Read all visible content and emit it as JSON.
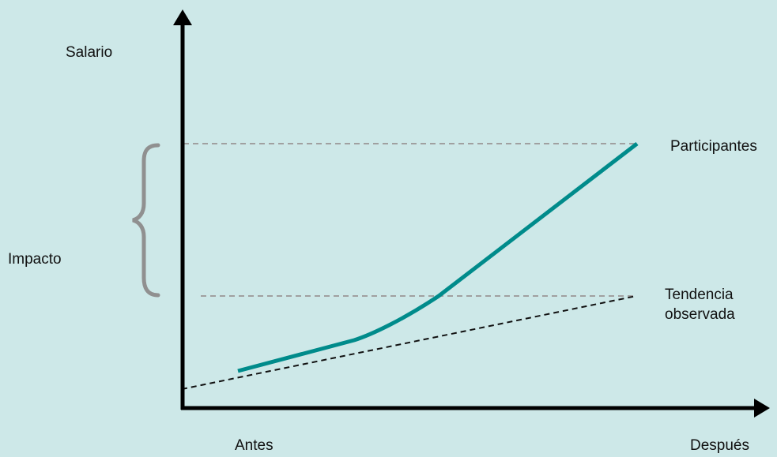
{
  "colors": {
    "background": "#cde8e8",
    "axis": "#000000",
    "participants_line": "#008b8b",
    "trend_line": "#111111",
    "reference_lines": "#a0a0a0",
    "brace": "#909090"
  },
  "labels": {
    "y_axis": "Salario",
    "impact": "Impacto",
    "x_before": "Antes",
    "x_after": "Después",
    "participants": "Participantes",
    "trend_line1": "Tendencia",
    "trend_line2": "observada"
  }
}
